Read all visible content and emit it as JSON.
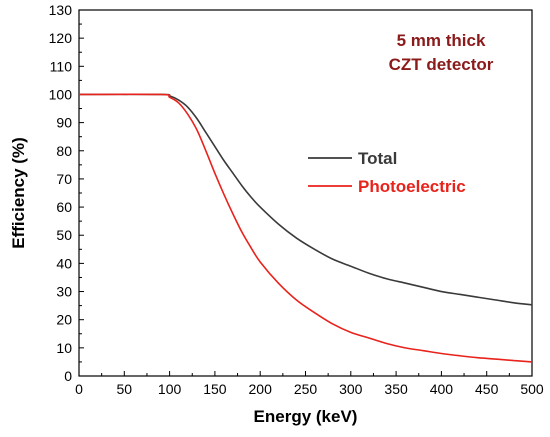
{
  "chart_data": {
    "type": "line",
    "title": "",
    "annotation": [
      "5 mm thick",
      "CZT detector"
    ],
    "annotation_color": "#8b1a1a",
    "xlabel": "Energy (keV)",
    "ylabel": "Efficiency (%)",
    "xlim": [
      0,
      500
    ],
    "ylim": [
      0,
      130
    ],
    "xticks": [
      "0",
      "50",
      "100",
      "150",
      "200",
      "250",
      "300",
      "350",
      "400",
      "450",
      "500"
    ],
    "yticks": [
      "0",
      "10",
      "20",
      "30",
      "40",
      "50",
      "60",
      "70",
      "80",
      "90",
      "100",
      "110",
      "120",
      "130"
    ],
    "grid": false,
    "legend_position": "center-right",
    "series": [
      {
        "name": "Total",
        "color": "#3a3a3a",
        "x": [
          0,
          90,
          100,
          110,
          120,
          130,
          140,
          150,
          160,
          170,
          180,
          190,
          200,
          220,
          240,
          260,
          280,
          300,
          320,
          340,
          360,
          380,
          400,
          420,
          440,
          460,
          480,
          500
        ],
        "y": [
          100,
          100,
          99.5,
          98,
          95.5,
          91.5,
          86.5,
          81.5,
          76.5,
          72,
          67.5,
          63.5,
          60,
          54,
          49,
          45,
          41.5,
          39,
          36.5,
          34.5,
          33,
          31.5,
          30,
          29,
          28,
          27,
          26,
          25.3
        ]
      },
      {
        "name": "Photoelectric",
        "color": "#e8231c",
        "x": [
          0,
          90,
          100,
          110,
          120,
          130,
          140,
          150,
          160,
          170,
          180,
          190,
          200,
          220,
          240,
          260,
          280,
          300,
          320,
          340,
          360,
          380,
          400,
          420,
          440,
          460,
          480,
          500
        ],
        "y": [
          100,
          100,
          99,
          97,
          93,
          87.5,
          80,
          72,
          64.5,
          57.5,
          51,
          45.5,
          40.5,
          33,
          27,
          22.5,
          18.5,
          15.5,
          13.5,
          11.5,
          10,
          9,
          8,
          7.2,
          6.5,
          6,
          5.5,
          5
        ]
      }
    ]
  }
}
